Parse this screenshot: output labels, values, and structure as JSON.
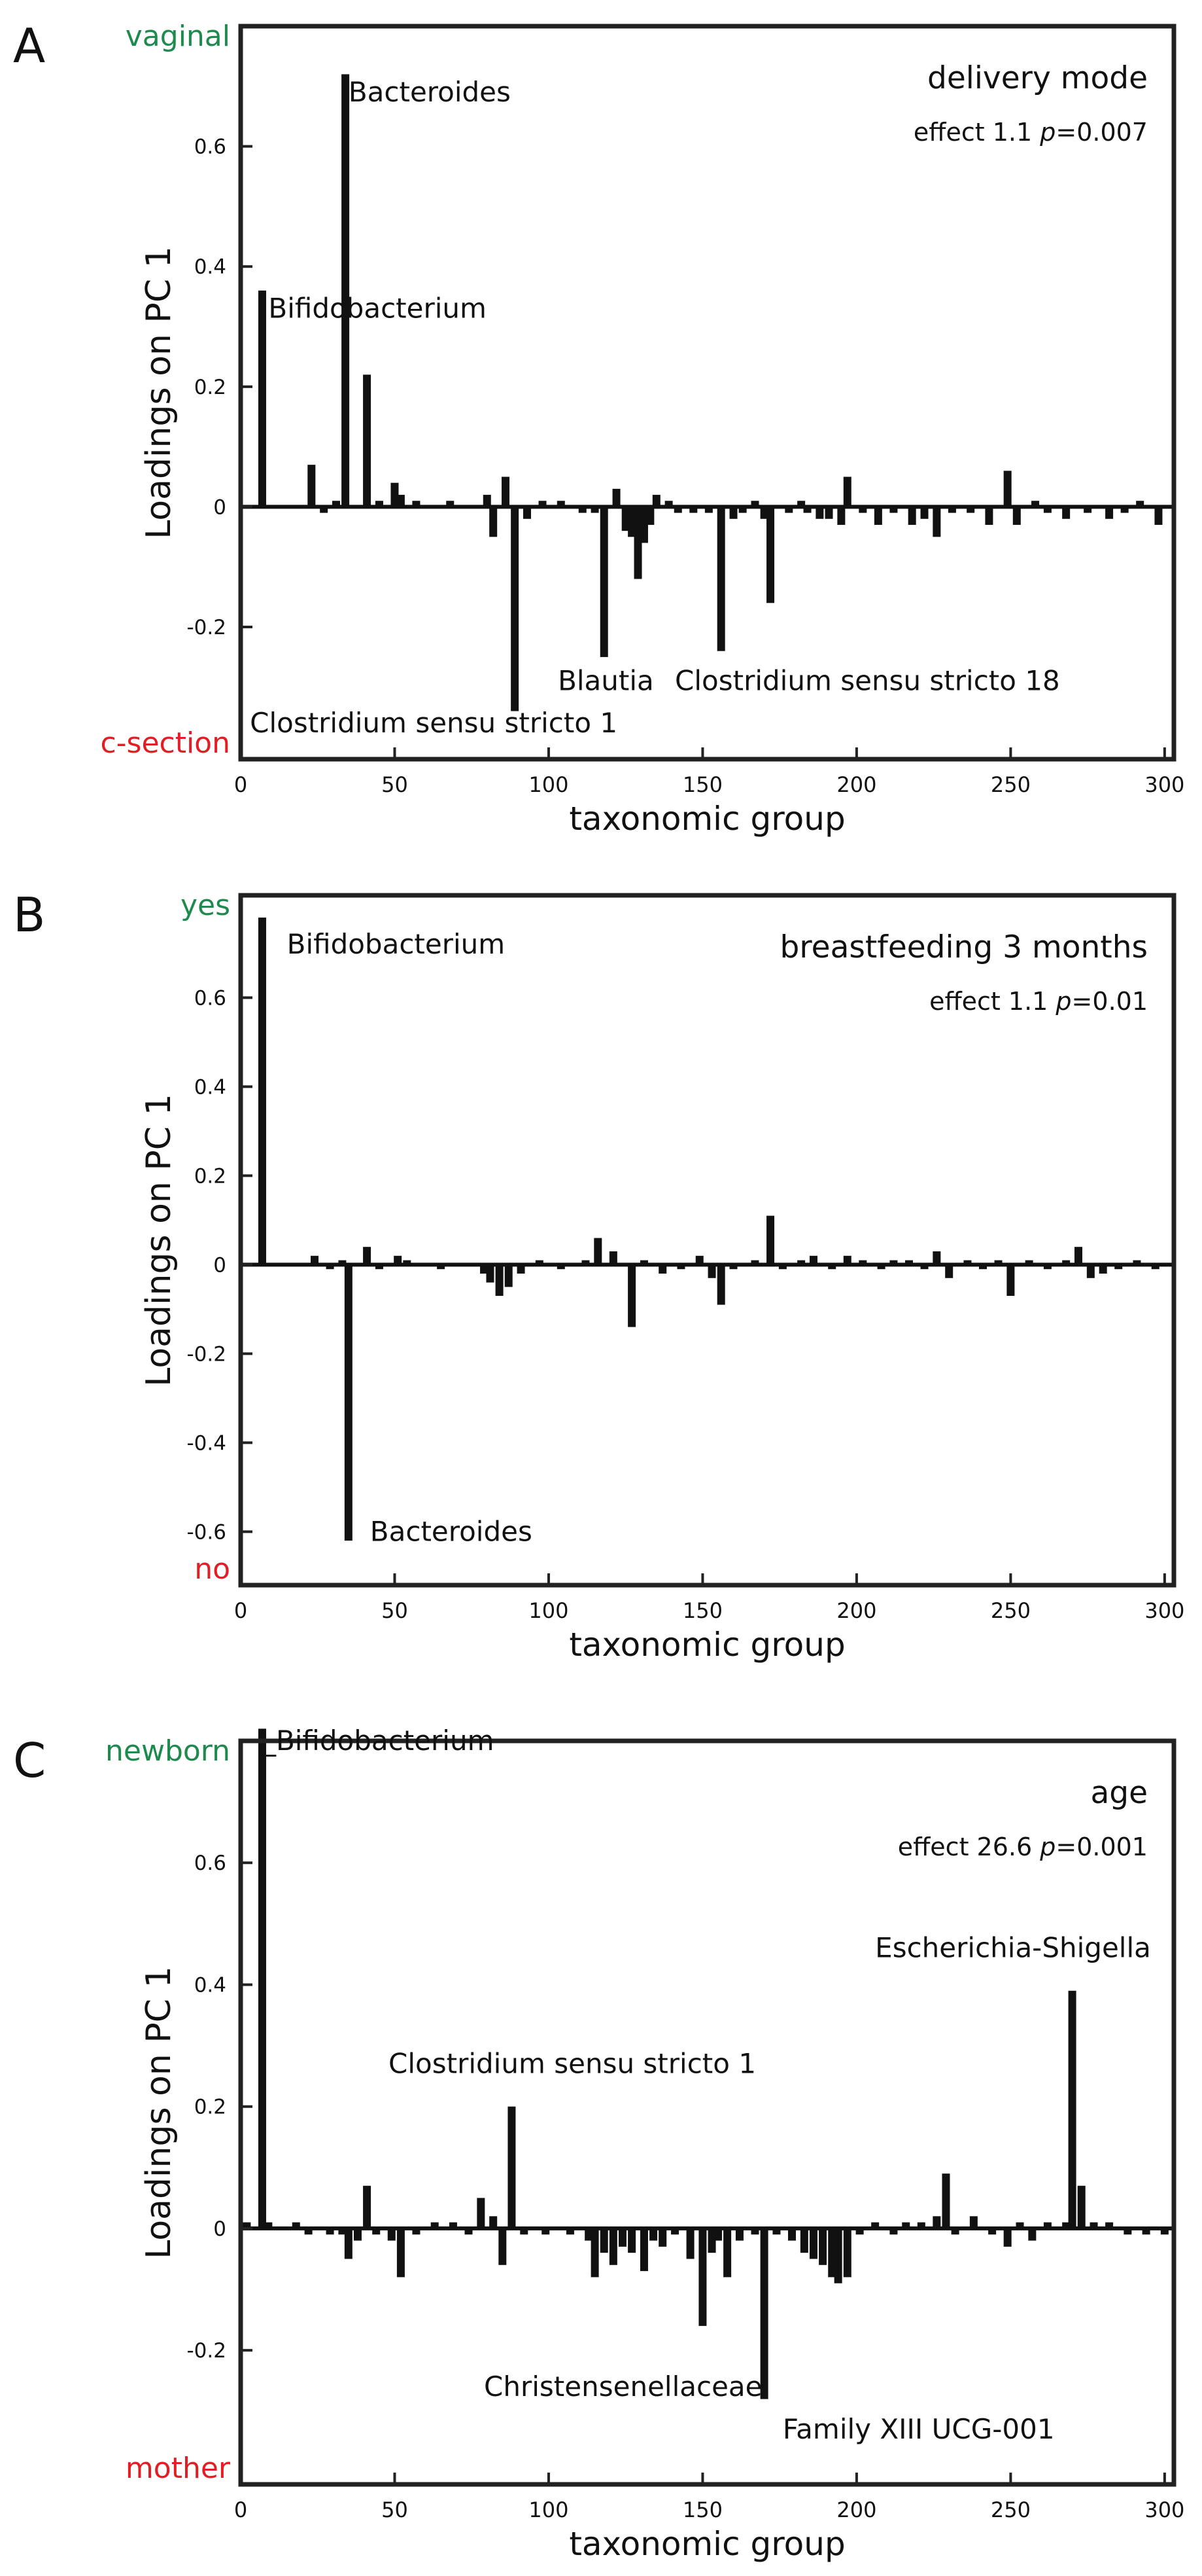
{
  "chart_data": [
    {
      "type": "bar",
      "panel_letter": "A",
      "title": "delivery mode",
      "stat_prefix": "effect 1.1 ",
      "stat_p": "p",
      "stat_suffix": "=0.007",
      "top_group": "vaginal",
      "bottom_group": "c-section",
      "xlabel": "taxonomic group",
      "ylabel": "Loadings on PC 1",
      "xlim": [
        0,
        303
      ],
      "ylim": [
        -0.42,
        0.8
      ],
      "xticks": [
        0,
        50,
        100,
        150,
        200,
        250,
        300
      ],
      "yticks": [
        {
          "value": 0.6,
          "label": "0.6"
        },
        {
          "value": 0.4,
          "label": "0.4"
        },
        {
          "value": 0.2,
          "label": "0.2"
        },
        {
          "value": 0,
          "label": "0"
        },
        {
          "value": -0.2,
          "label": "-0.2"
        }
      ],
      "bars": [
        [
          7,
          0.36
        ],
        [
          23,
          0.07
        ],
        [
          27,
          -0.01
        ],
        [
          31,
          0.01
        ],
        [
          34,
          0.72
        ],
        [
          41,
          0.22
        ],
        [
          45,
          0.01
        ],
        [
          50,
          0.04
        ],
        [
          52,
          0.02
        ],
        [
          57,
          0.01
        ],
        [
          68,
          0.01
        ],
        [
          80,
          0.02
        ],
        [
          82,
          -0.05
        ],
        [
          86,
          0.05
        ],
        [
          89,
          -0.34
        ],
        [
          93,
          -0.02
        ],
        [
          98,
          0.01
        ],
        [
          104,
          0.01
        ],
        [
          111,
          -0.01
        ],
        [
          115,
          -0.01
        ],
        [
          118,
          -0.25
        ],
        [
          122,
          0.03
        ],
        [
          125,
          -0.04
        ],
        [
          127,
          -0.05
        ],
        [
          129,
          -0.12
        ],
        [
          131,
          -0.06
        ],
        [
          133,
          -0.03
        ],
        [
          135,
          0.02
        ],
        [
          139,
          0.01
        ],
        [
          142,
          -0.01
        ],
        [
          147,
          -0.01
        ],
        [
          152,
          -0.01
        ],
        [
          156,
          -0.24
        ],
        [
          160,
          -0.02
        ],
        [
          163,
          -0.01
        ],
        [
          167,
          0.01
        ],
        [
          170,
          -0.02
        ],
        [
          172,
          -0.16
        ],
        [
          178,
          -0.01
        ],
        [
          182,
          0.01
        ],
        [
          184,
          -0.01
        ],
        [
          188,
          -0.02
        ],
        [
          191,
          -0.02
        ],
        [
          195,
          -0.03
        ],
        [
          197,
          0.05
        ],
        [
          202,
          -0.01
        ],
        [
          207,
          -0.03
        ],
        [
          212,
          -0.01
        ],
        [
          218,
          -0.03
        ],
        [
          222,
          -0.02
        ],
        [
          226,
          -0.05
        ],
        [
          231,
          -0.01
        ],
        [
          237,
          -0.01
        ],
        [
          243,
          -0.03
        ],
        [
          249,
          0.06
        ],
        [
          252,
          -0.03
        ],
        [
          258,
          0.01
        ],
        [
          262,
          -0.01
        ],
        [
          268,
          -0.02
        ],
        [
          275,
          -0.01
        ],
        [
          282,
          -0.02
        ],
        [
          287,
          -0.01
        ],
        [
          292,
          0.01
        ],
        [
          298,
          -0.03
        ]
      ],
      "labels": [
        {
          "text": "Bacteroides",
          "x": 35,
          "y": 0.69
        },
        {
          "text": "Bifidobacterium",
          "x": 9,
          "y": 0.33
        },
        {
          "text": "Blautia",
          "x": 103,
          "y": -0.29
        },
        {
          "text": "Clostridium sensu stricto 18",
          "x": 141,
          "y": -0.29
        },
        {
          "text": "Clostridium sensu stricto 1",
          "x": 3,
          "y": -0.36
        }
      ]
    },
    {
      "type": "bar",
      "panel_letter": "B",
      "title": "breastfeeding 3 months",
      "stat_prefix": "effect 1.1 ",
      "stat_p": "p",
      "stat_suffix": "=0.01",
      "top_group": "yes",
      "bottom_group": "no",
      "xlabel": "taxonomic group",
      "ylabel": "Loadings on PC 1",
      "xlim": [
        0,
        303
      ],
      "ylim": [
        -0.72,
        0.83
      ],
      "xticks": [
        0,
        50,
        100,
        150,
        200,
        250,
        300
      ],
      "yticks": [
        {
          "value": 0.6,
          "label": "0.6"
        },
        {
          "value": 0.4,
          "label": "0.4"
        },
        {
          "value": 0.2,
          "label": "0.2"
        },
        {
          "value": 0,
          "label": "0"
        },
        {
          "value": -0.2,
          "label": "-0.2"
        },
        {
          "value": -0.4,
          "label": "-0.4"
        },
        {
          "value": -0.6,
          "label": "-0.6"
        }
      ],
      "bars": [
        [
          7,
          0.78
        ],
        [
          24,
          0.02
        ],
        [
          29,
          -0.01
        ],
        [
          33,
          0.01
        ],
        [
          35,
          -0.62
        ],
        [
          41,
          0.04
        ],
        [
          45,
          -0.01
        ],
        [
          51,
          0.02
        ],
        [
          54,
          0.01
        ],
        [
          65,
          -0.01
        ],
        [
          79,
          -0.02
        ],
        [
          81,
          -0.04
        ],
        [
          84,
          -0.07
        ],
        [
          87,
          -0.05
        ],
        [
          91,
          -0.02
        ],
        [
          97,
          0.01
        ],
        [
          104,
          -0.01
        ],
        [
          112,
          0.01
        ],
        [
          116,
          0.06
        ],
        [
          121,
          0.03
        ],
        [
          127,
          -0.14
        ],
        [
          131,
          0.01
        ],
        [
          137,
          -0.02
        ],
        [
          143,
          -0.01
        ],
        [
          149,
          0.02
        ],
        [
          153,
          -0.03
        ],
        [
          156,
          -0.09
        ],
        [
          160,
          -0.01
        ],
        [
          167,
          0.01
        ],
        [
          172,
          0.11
        ],
        [
          176,
          -0.01
        ],
        [
          182,
          0.01
        ],
        [
          186,
          0.02
        ],
        [
          192,
          -0.01
        ],
        [
          197,
          0.02
        ],
        [
          202,
          0.01
        ],
        [
          208,
          -0.01
        ],
        [
          212,
          0.01
        ],
        [
          217,
          0.01
        ],
        [
          222,
          -0.01
        ],
        [
          226,
          0.03
        ],
        [
          230,
          -0.03
        ],
        [
          236,
          0.01
        ],
        [
          241,
          -0.01
        ],
        [
          246,
          0.01
        ],
        [
          250,
          -0.07
        ],
        [
          256,
          0.01
        ],
        [
          262,
          -0.01
        ],
        [
          268,
          0.01
        ],
        [
          272,
          0.04
        ],
        [
          276,
          -0.03
        ],
        [
          280,
          -0.02
        ],
        [
          285,
          -0.01
        ],
        [
          291,
          0.01
        ],
        [
          297,
          -0.01
        ]
      ],
      "labels": [
        {
          "text": "Bifidobacterium",
          "x": 15,
          "y": 0.72
        },
        {
          "text": "Bacteroides",
          "x": 42,
          "y": -0.6
        }
      ]
    },
    {
      "type": "bar",
      "panel_letter": "C",
      "title": "age",
      "stat_prefix": "effect 26.6 ",
      "stat_p": "p",
      "stat_suffix": "=0.001",
      "top_group": "newborn",
      "bottom_group": "mother",
      "xlabel": "taxonomic group",
      "ylabel": "Loadings on PC 1",
      "xlim": [
        0,
        303
      ],
      "ylim": [
        -0.42,
        0.8
      ],
      "xticks": [
        0,
        50,
        100,
        150,
        200,
        250,
        300
      ],
      "yticks": [
        {
          "value": 0.6,
          "label": "0.6"
        },
        {
          "value": 0.4,
          "label": "0.4"
        },
        {
          "value": 0.2,
          "label": "0.2"
        },
        {
          "value": 0,
          "label": "0"
        },
        {
          "value": -0.2,
          "label": "-0.2"
        }
      ],
      "bars": [
        [
          2,
          0.01
        ],
        [
          7,
          0.82
        ],
        [
          9,
          0.01
        ],
        [
          18,
          0.01
        ],
        [
          22,
          -0.01
        ],
        [
          29,
          -0.01
        ],
        [
          33,
          -0.01
        ],
        [
          35,
          -0.05
        ],
        [
          38,
          -0.02
        ],
        [
          41,
          0.07
        ],
        [
          44,
          -0.01
        ],
        [
          49,
          -0.02
        ],
        [
          52,
          -0.08
        ],
        [
          57,
          -0.01
        ],
        [
          63,
          0.01
        ],
        [
          69,
          0.01
        ],
        [
          74,
          -0.01
        ],
        [
          78,
          0.05
        ],
        [
          82,
          0.02
        ],
        [
          85,
          -0.06
        ],
        [
          88,
          0.2
        ],
        [
          92,
          -0.01
        ],
        [
          99,
          -0.01
        ],
        [
          107,
          -0.01
        ],
        [
          113,
          -0.02
        ],
        [
          115,
          -0.08
        ],
        [
          118,
          -0.04
        ],
        [
          121,
          -0.06
        ],
        [
          124,
          -0.03
        ],
        [
          127,
          -0.04
        ],
        [
          131,
          -0.07
        ],
        [
          134,
          -0.02
        ],
        [
          137,
          -0.03
        ],
        [
          141,
          -0.01
        ],
        [
          146,
          -0.05
        ],
        [
          150,
          -0.16
        ],
        [
          153,
          -0.04
        ],
        [
          155,
          -0.02
        ],
        [
          158,
          -0.08
        ],
        [
          162,
          -0.02
        ],
        [
          167,
          -0.01
        ],
        [
          170,
          -0.28
        ],
        [
          174,
          -0.01
        ],
        [
          179,
          -0.02
        ],
        [
          183,
          -0.04
        ],
        [
          186,
          -0.05
        ],
        [
          189,
          -0.06
        ],
        [
          192,
          -0.08
        ],
        [
          194,
          -0.09
        ],
        [
          197,
          -0.08
        ],
        [
          201,
          -0.01
        ],
        [
          206,
          0.01
        ],
        [
          212,
          -0.01
        ],
        [
          216,
          0.01
        ],
        [
          221,
          0.01
        ],
        [
          226,
          0.02
        ],
        [
          229,
          0.09
        ],
        [
          232,
          -0.01
        ],
        [
          238,
          0.02
        ],
        [
          244,
          -0.01
        ],
        [
          249,
          -0.03
        ],
        [
          253,
          0.01
        ],
        [
          257,
          -0.02
        ],
        [
          262,
          0.01
        ],
        [
          268,
          0.01
        ],
        [
          270,
          0.39
        ],
        [
          273,
          0.07
        ],
        [
          277,
          0.01
        ],
        [
          282,
          0.01
        ],
        [
          288,
          -0.01
        ],
        [
          294,
          -0.01
        ],
        [
          300,
          -0.01
        ]
      ],
      "labels": [
        {
          "text": "_Bifidobacterium",
          "x": 7,
          "y": 0.8
        },
        {
          "text": "Clostridium sensu stricto 1",
          "x": 48,
          "y": 0.27
        },
        {
          "text": "Escherichia-Shigella",
          "x": 206,
          "y": 0.46
        },
        {
          "text": "Christensenellaceae",
          "x": 79,
          "y": -0.26
        },
        {
          "text": "Family XIII UCG-001",
          "x": 176,
          "y": -0.33
        }
      ]
    }
  ]
}
